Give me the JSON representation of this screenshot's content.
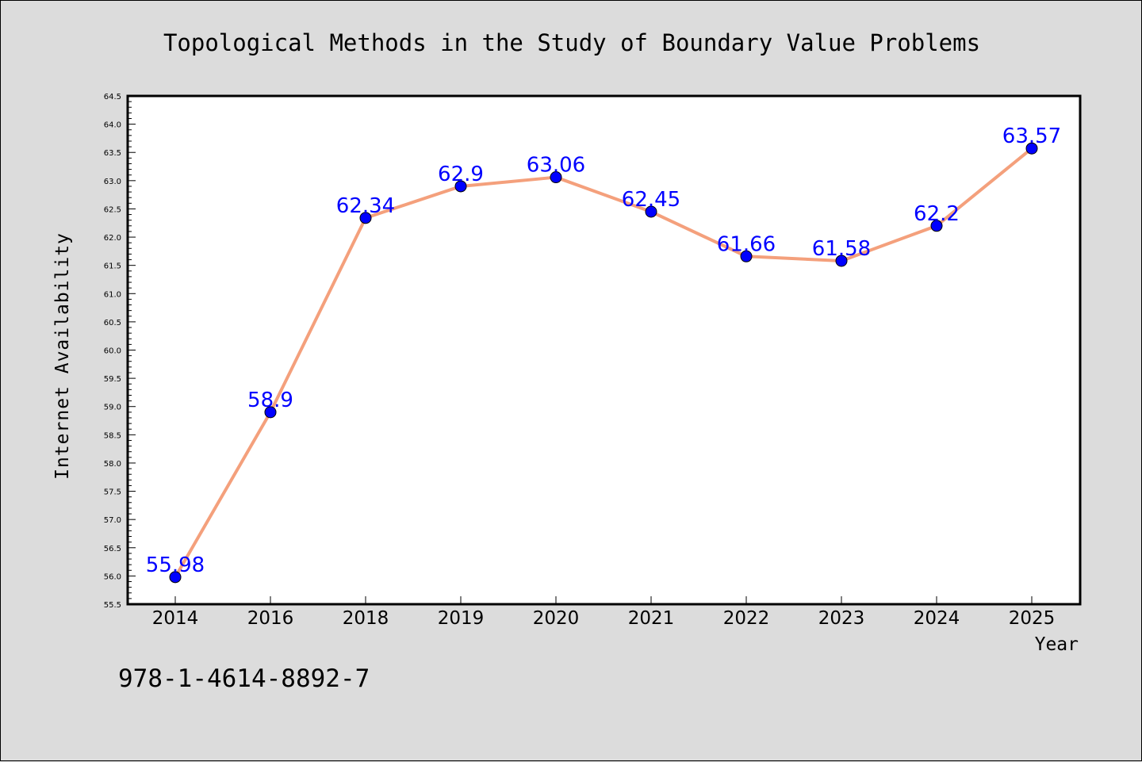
{
  "colors": {
    "background": "#dcdcdc",
    "plot_background": "#ffffff",
    "line": "#f4a07c",
    "marker": "#0000ff",
    "data_label": "#0000ff"
  },
  "footnote": "978-1-4614-8892-7",
  "chart_data": {
    "type": "line",
    "title": "Topological Methods in the Study of Boundary Value Problems",
    "xlabel": "Year",
    "ylabel": "Internet Availability",
    "categories": [
      "2014",
      "2016",
      "2018",
      "2019",
      "2020",
      "2021",
      "2022",
      "2023",
      "2024",
      "2025"
    ],
    "series": [
      {
        "values": [
          55.98,
          58.9,
          62.34,
          62.9,
          63.06,
          62.45,
          61.66,
          61.58,
          62.2,
          63.57
        ],
        "labels": [
          "55.98",
          "58.9",
          "62.34",
          "62.9",
          "63.06",
          "62.45",
          "61.66",
          "61.58",
          "62.2",
          "63.57"
        ]
      }
    ],
    "ylim": [
      55.5,
      64.5
    ],
    "yticks": [
      "55.5",
      "56.0",
      "56.5",
      "57.0",
      "57.5",
      "58.0",
      "58.5",
      "59.0",
      "59.5",
      "60.0",
      "60.5",
      "61.0",
      "61.5",
      "62.0",
      "62.5",
      "63.0",
      "63.5",
      "64.0",
      "64.5"
    ],
    "grid": false,
    "legend": "none"
  }
}
